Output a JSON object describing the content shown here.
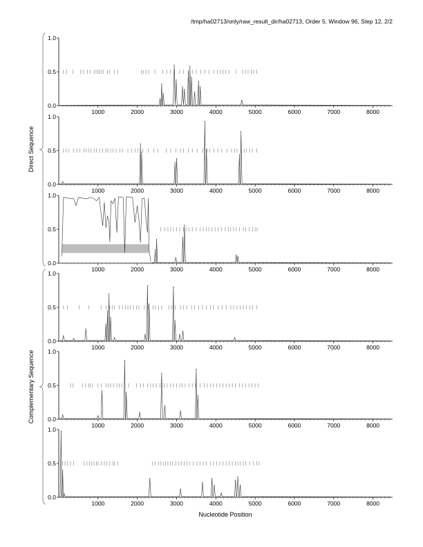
{
  "header": "/tmp/ha02713/only/raw_result_dir/ha02713, Order 5, Window 96, Step 12, 2/2",
  "xlabel": "Nucleotide Position",
  "group_labels": [
    "Direct Sequence",
    "Complementary Sequence"
  ],
  "chart_data": {
    "type": "line",
    "title": "/tmp/ha02713/only/raw_result_dir/ha02713, Order 5, Window 96, Step 12, 2/2",
    "xlabel": "Nucleotide Position",
    "xlim": [
      0,
      8500
    ],
    "ylim": [
      0,
      1
    ],
    "x_ticks": [
      1000,
      2000,
      3000,
      4000,
      5000,
      6000,
      7000,
      8000
    ],
    "y_tick_labels": [
      "0.0",
      "0.5",
      "1.0"
    ],
    "groups": [
      {
        "label": "Direct Sequence",
        "panels": [
          1,
          2,
          3
        ]
      },
      {
        "label": "Complementary Sequence",
        "panels": [
          4,
          5,
          6
        ]
      }
    ],
    "panels": [
      {
        "id": 1,
        "marker_level": 0.5,
        "markers": [
          120,
          200,
          360,
          560,
          620,
          730,
          800,
          900,
          950,
          1000,
          1040,
          1090,
          1140,
          1240,
          1300,
          1420,
          1500,
          2100,
          2150,
          2220,
          2300,
          2450,
          2650,
          2750,
          2840,
          2950,
          3080,
          3180,
          3300,
          3400,
          3500,
          3620,
          3720,
          3820,
          3950,
          4040,
          4120,
          4180,
          4250,
          4340,
          4520,
          4680,
          4750,
          4820,
          4900,
          4960,
          5040
        ],
        "peaks": [
          [
            2580,
            0.1
          ],
          [
            2620,
            0.32
          ],
          [
            2660,
            0.18
          ],
          [
            2940,
            0.6
          ],
          [
            2990,
            0.38
          ],
          [
            3150,
            0.28
          ],
          [
            3200,
            0.24
          ],
          [
            3300,
            0.5
          ],
          [
            3340,
            0.58
          ],
          [
            3380,
            0.42
          ],
          [
            3460,
            0.2
          ],
          [
            3560,
            0.36
          ],
          [
            3600,
            0.28
          ],
          [
            4660,
            0.08
          ]
        ]
      },
      {
        "id": 2,
        "marker_level": 0.5,
        "markers": [
          120,
          180,
          260,
          380,
          460,
          540,
          640,
          700,
          760,
          820,
          900,
          960,
          1040,
          1120,
          1200,
          1250,
          1320,
          1380,
          1460,
          1560,
          1620,
          1760,
          1860,
          1940,
          2020,
          2140,
          2280,
          2420,
          2520,
          2740,
          2850,
          2980,
          3100,
          3180,
          3300,
          3400,
          3520,
          3660,
          3780,
          3840,
          3950,
          4050,
          4150,
          4280,
          4400,
          4480,
          4540,
          4640,
          4720,
          4780,
          4860,
          4930,
          5040
        ],
        "peaks": [
          [
            100,
            0.04
          ],
          [
            2080,
            0.6
          ],
          [
            2110,
            0.48
          ],
          [
            2960,
            0.32
          ],
          [
            3000,
            0.38
          ],
          [
            3720,
            0.93
          ],
          [
            3760,
            0.52
          ],
          [
            4600,
            0.44
          ],
          [
            4640,
            0.78
          ]
        ]
      },
      {
        "id": 3,
        "marker_level": 0.5,
        "markers": [
          2600,
          2700,
          2780,
          2850,
          2920,
          3000,
          3080,
          3180,
          3240,
          3320,
          3400,
          3500,
          3600,
          3680,
          3760,
          3820,
          3900,
          3980,
          4060,
          4140,
          4240,
          4320,
          4380,
          4450,
          4520,
          4600,
          4700,
          4760,
          4850,
          4940,
          5000,
          5050
        ],
        "shaded_region": {
          "x_start": 80,
          "x_end": 2300,
          "y_start": 0.15,
          "y_end": 0.28
        },
        "high_segment": [
          [
            80,
            0.1
          ],
          [
            120,
            0.97
          ],
          [
            250,
            0.96
          ],
          [
            380,
            0.95
          ],
          [
            440,
            0.85
          ],
          [
            500,
            0.97
          ],
          [
            600,
            0.96
          ],
          [
            700,
            0.95
          ],
          [
            800,
            0.97
          ],
          [
            900,
            0.95
          ],
          [
            960,
            0.92
          ],
          [
            1030,
            0.97
          ],
          [
            1080,
            0.72
          ],
          [
            1120,
            0.55
          ],
          [
            1160,
            0.9
          ],
          [
            1200,
            0.52
          ],
          [
            1240,
            0.7
          ],
          [
            1280,
            0.6
          ],
          [
            1300,
            0.31
          ],
          [
            1330,
            0.92
          ],
          [
            1380,
            0.88
          ],
          [
            1430,
            0.96
          ],
          [
            1480,
            0.45
          ],
          [
            1520,
            0.98
          ],
          [
            1640,
            0.97
          ],
          [
            1680,
            0.15
          ],
          [
            1720,
            0.98
          ],
          [
            1880,
            0.97
          ],
          [
            1940,
            0.6
          ],
          [
            2000,
            0.85
          ],
          [
            2040,
            0.66
          ],
          [
            2080,
            0.3
          ],
          [
            2120,
            0.95
          ],
          [
            2180,
            0.96
          ],
          [
            2230,
            0.6
          ],
          [
            2260,
            0.45
          ],
          [
            2280,
            0.96
          ],
          [
            2300,
            0.2
          ],
          [
            2340,
            0.03
          ]
        ],
        "peaks": [
          [
            2460,
            0.2
          ],
          [
            2490,
            0.35
          ],
          [
            2980,
            0.08
          ],
          [
            3160,
            0.38
          ],
          [
            3200,
            0.56
          ],
          [
            4520,
            0.12
          ],
          [
            4560,
            0.1
          ]
        ]
      },
      {
        "id": 4,
        "marker_level": 0.5,
        "markers": [
          120,
          220,
          520,
          760,
          1080,
          1200,
          1300,
          1360,
          1420,
          1540,
          1620,
          1700,
          1760,
          1820,
          1900,
          1980,
          2040,
          2180,
          2280,
          2400,
          2460,
          2540,
          2620,
          2800,
          2880,
          2960,
          3100,
          3180,
          3260,
          3380,
          3460,
          3560,
          3660,
          3760,
          3860,
          3940,
          4060,
          4160,
          4260,
          4380,
          4450,
          4540,
          4620,
          4700,
          4780,
          4860,
          4940,
          5040
        ],
        "peaks": [
          [
            120,
            0.08
          ],
          [
            380,
            0.04
          ],
          [
            690,
            0.18
          ],
          [
            1200,
            0.25
          ],
          [
            1240,
            0.45
          ],
          [
            1280,
            0.7
          ],
          [
            1320,
            0.35
          ],
          [
            1420,
            0.05
          ],
          [
            2200,
            0.1
          ],
          [
            2260,
            0.82
          ],
          [
            2300,
            0.55
          ],
          [
            2920,
            0.8
          ],
          [
            2960,
            0.3
          ],
          [
            3080,
            0.1
          ],
          [
            3160,
            0.15
          ],
          [
            4480,
            0.05
          ]
        ]
      },
      {
        "id": 5,
        "marker_level": 0.5,
        "markers": [
          300,
          360,
          600,
          680,
          760,
          800,
          860,
          1000,
          1080,
          1200,
          1260,
          1320,
          1400,
          1480,
          1540,
          1600,
          1780,
          1980,
          2080,
          2160,
          2260,
          2340,
          2400,
          2480,
          2580,
          2680,
          2760,
          2840,
          2920,
          3000,
          3080,
          3140,
          3220,
          3320,
          3400,
          3480,
          3600,
          3700,
          3780,
          3860,
          3940,
          4020,
          4100,
          4180,
          4260,
          4340,
          4420,
          4500,
          4600,
          4680,
          4760,
          4840,
          4920,
          5000,
          5080
        ],
        "peaks": [
          [
            100,
            0.06
          ],
          [
            1000,
            0.05
          ],
          [
            1100,
            0.42
          ],
          [
            1680,
            0.87
          ],
          [
            1720,
            0.4
          ],
          [
            2060,
            0.1
          ],
          [
            2620,
            0.68
          ],
          [
            2700,
            0.2
          ],
          [
            3100,
            0.12
          ],
          [
            3500,
            0.74
          ],
          [
            3540,
            0.35
          ]
        ]
      },
      {
        "id": 6,
        "marker_level": 0.5,
        "markers": [
          100,
          160,
          220,
          300,
          380,
          640,
          720,
          780,
          840,
          900,
          960,
          1000,
          1080,
          1160,
          1220,
          1300,
          1380,
          1420,
          1500,
          2380,
          2460,
          2540,
          2600,
          2660,
          2720,
          2780,
          2840,
          2900,
          2980,
          3060,
          3120,
          3200,
          3260,
          3340,
          3420,
          3520,
          3600,
          3680,
          3760,
          3860,
          3940,
          4020,
          4100,
          4180,
          4260,
          4340,
          4420,
          4500,
          4560,
          4620,
          4700,
          4760,
          4860,
          4960,
          5040,
          5100
        ],
        "peaks": [
          [
            60,
            0.98
          ],
          [
            100,
            0.4
          ],
          [
            140,
            0.05
          ],
          [
            2320,
            0.28
          ],
          [
            3100,
            0.12
          ],
          [
            3660,
            0.22
          ],
          [
            3900,
            0.28
          ],
          [
            3960,
            0.18
          ],
          [
            4140,
            0.06
          ],
          [
            4500,
            0.25
          ],
          [
            4560,
            0.3
          ],
          [
            4620,
            0.18
          ]
        ]
      }
    ]
  }
}
